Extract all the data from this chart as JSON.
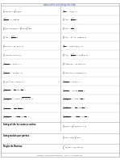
{
  "url": "www.vitutor.com/integrales.html",
  "background": "#ffffff",
  "col1_formulas": [
    "$\\int af(x)dx = a\\int f(x)dx$",
    "$\\int\\frac{x^{n+1}}{n+1}+c,\\ n\\neq -1$",
    "$\\int [f(x)\\pm g(x)]dx = \\int fdx \\pm \\int gdx$",
    "$\\int x^n dx = \\frac{x^{n+1}}{n+1} + c$",
    "$\\int\\sin x\\,dx = -\\cos x + c$",
    "$\\int\\cos x\\,dx = \\sin x + c$",
    "$\\int\\frac{1}{\\cos^2 x}dx = \\tan x + c$",
    "$\\int\\frac{1}{\\sin^2 x}dx = -\\cot x + c$",
    "$\\int x\\cos^2 x\\,dx = \\tan x + c$",
    "$\\int\\frac{1}{a^2+x^2}dx = \\frac{1}{a}\\arctan\\frac{x}{a} + c$",
    "$\\int\\frac{1}{\\sqrt{x^2\\pm a^2}}dx = \\ln|x+\\sqrt{x^2\\pm a^2}|+c$",
    "$\\int\\frac{1}{a^2-x^2}dx = \\frac{1}{2a}\\ln\\frac{a+x}{a-x}+c$",
    "$\\int\\frac{x}{\\sqrt{a^2-x^2}}dx = -\\frac{1}{a}\\arcsin\\frac{x}{a}+c$"
  ],
  "col2_formulas": [
    "$\\int\\frac{1}{x}dx = \\ln|x| + c$",
    "$\\int x^n dx = \\frac{x^{n+1}}{n+1} + c$",
    "$\\int a^x dx = \\frac{a^x}{\\ln a} + c$",
    "$\\int e^x dx = e^x + c,\\ (n\\neq -1)$",
    "$\\int\\frac{1}{x}dx = \\ln|x\\pm g(x)| + c$",
    "$\\int x^n dx = \\frac{x^{n+1}}{n+1}+c,\\ (n\\neq -1)$",
    "$\\int e^x\\tan x\\,dx = -\\cos x + c$",
    "$\\int e^x\\arctan x = \\arctan x + c$",
    "$\\int\\frac{1}{\\cos^2 x}dx = \\tan x + c$",
    "$\\int\\frac{1}{\\sin^2 x}dx = -\\cot\\frac{x}{\\sin^2 x}+c$",
    "$\\int\\frac{1}{\\sqrt{a^2-x^2}}dx = \\arcsin\\frac{x}{a}+c$",
    "$\\int\\frac{a^2}{\\sqrt{a^2+x^2}}dx = \\frac{1}{2}\\arctan(\\frac{x}{a})+c$",
    "$\\int\\frac{x}{\\sqrt{a^2+x^2}}dx = -\\frac{1}{a}\\arctan\\frac{x}{a}+c$"
  ],
  "section_integral": "Integral de la suma a costos",
  "section_integ_formula": "$\\int f(x)dx = [\\int f(x)dx] + c\\;dx$",
  "section_parts": "Integración por partes",
  "section_parts_formula": "$\\int u\\,dv = uv - \\int v\\,du$",
  "section_barrow": "Regla de Barrow",
  "section_barrow_formula": "$\\int_a^b f(x)dx = F(b) - F(a)$",
  "footer": "Siendo F una primitiva de f(x),   m, R, y C constantes."
}
